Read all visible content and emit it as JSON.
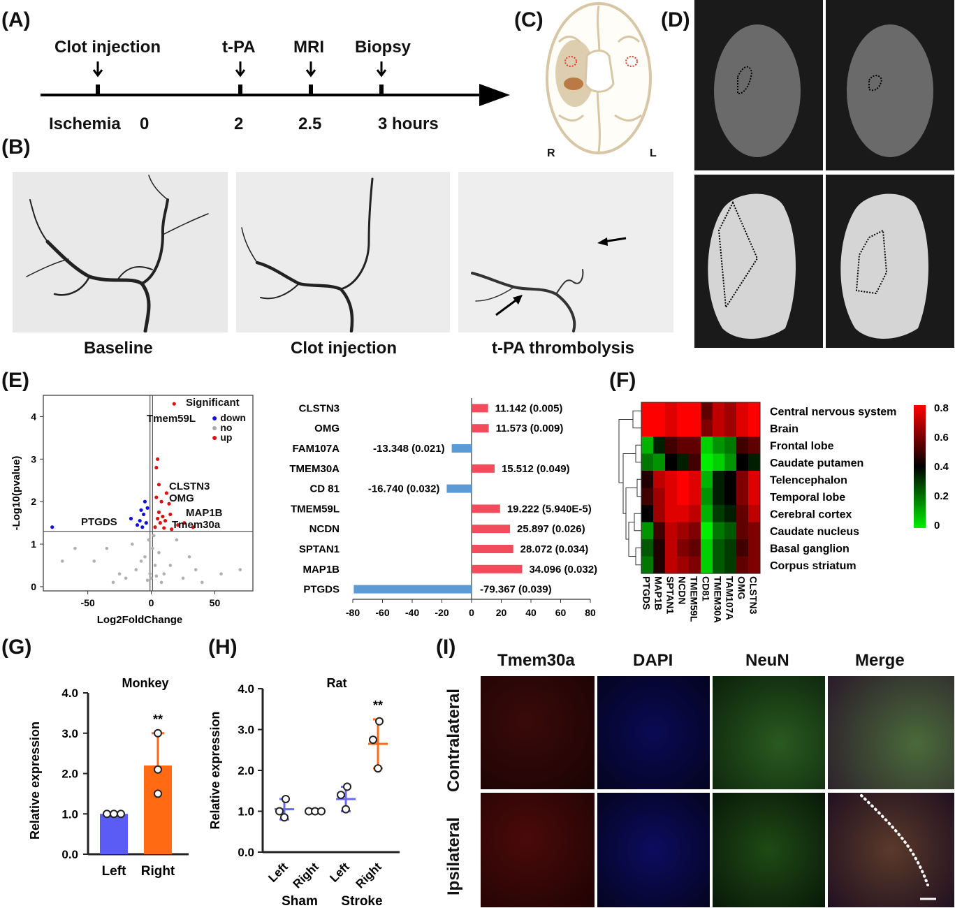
{
  "panels": {
    "A": {
      "label": "(A)",
      "events": [
        "Clot injection",
        "t-PA",
        "MRI",
        "Biopsy"
      ],
      "timeline": [
        "Ischemia",
        "0",
        "2",
        "2.5",
        "3 hours"
      ]
    },
    "B": {
      "label": "(B)",
      "captions": [
        "Baseline",
        "Clot injection",
        "t-PA thrombolysis"
      ]
    },
    "C": {
      "label": "(C)",
      "side_right": "R",
      "side_left": "L"
    },
    "D": {
      "label": "(D)"
    },
    "E": {
      "label": "(E)",
      "legend_title": "Significant",
      "legend": [
        "down",
        "no",
        "up"
      ],
      "gene_labels": [
        "Tmem59L",
        "CLSTN3",
        "OMG",
        "MAP1B",
        "Tmem30a",
        "PTGDS"
      ]
    },
    "F": {
      "label": "(F)",
      "rows": [
        "Central nervous system",
        "Brain",
        "Frontal lobe",
        "Caudate putamen",
        "Telencephalon",
        "Temporal lobe",
        "Cerebral cortex",
        "Caudate nucleus",
        "Basal ganglion",
        "Corpus striatum"
      ],
      "cols": [
        "PTGDS",
        "MAP1B",
        "SPTAN1",
        "NCDN",
        "TMEM59L",
        "CD81",
        "TMEM30A",
        "TAM107A",
        "OMG",
        "CLSTN3"
      ],
      "scale_ticks": [
        "0.8",
        "0.6",
        "0.4",
        "0.2",
        "0"
      ],
      "colors": {
        "high": "#ff0000",
        "mid": "#000000",
        "low": "#00ee00"
      }
    },
    "G": {
      "label": "(G)"
    },
    "H": {
      "label": "(H)"
    },
    "I": {
      "label": "(I)",
      "columns": [
        "Tmem30a",
        "DAPI",
        "NeuN",
        "Merge"
      ],
      "rows": [
        "Contralateral",
        "Ipsilateral"
      ]
    }
  },
  "chart_data": [
    {
      "id": "E-volcano",
      "type": "scatter",
      "xlabel": "Log2FoldChange",
      "ylabel": "-Log10(pvalue)",
      "xticks": [
        "-50",
        "0",
        "50"
      ],
      "yticks": [
        "0",
        "1",
        "2",
        "3",
        "4"
      ],
      "xlim": [
        -85,
        80
      ],
      "ylim": [
        -0.1,
        4.5
      ],
      "threshold_y": 1.3,
      "threshold_x": [
        -1,
        1
      ],
      "up_points": [
        [
          18,
          4.3
        ],
        [
          5,
          3
        ],
        [
          4,
          2.8
        ],
        [
          12,
          2.2
        ],
        [
          8,
          2.0
        ],
        [
          14,
          1.95
        ],
        [
          6,
          1.75
        ],
        [
          9,
          1.65
        ],
        [
          26,
          1.5
        ],
        [
          21,
          1.45
        ],
        [
          33,
          1.4
        ],
        [
          7,
          1.5
        ],
        [
          11,
          1.55
        ],
        [
          16,
          1.35
        ],
        [
          3,
          1.4
        ],
        [
          5,
          1.6
        ],
        [
          15,
          1.7
        ],
        [
          10,
          1.38
        ],
        [
          4,
          2.1
        ],
        [
          6,
          2.4
        ]
      ],
      "down_points": [
        [
          -78,
          1.4
        ],
        [
          -16,
          1.6
        ],
        [
          -5,
          2.0
        ],
        [
          -8,
          1.8
        ],
        [
          -4,
          1.5
        ],
        [
          -7,
          1.4
        ],
        [
          -11,
          1.45
        ],
        [
          -6,
          1.7
        ],
        [
          -3,
          1.85
        ],
        [
          -9,
          1.55
        ]
      ],
      "no_points": [
        [
          -2,
          1.1
        ],
        [
          1,
          0.9
        ],
        [
          -5,
          0.7
        ],
        [
          3,
          0.5
        ],
        [
          -1,
          0.3
        ],
        [
          2,
          1.2
        ],
        [
          -8,
          0.6
        ],
        [
          6,
          0.8
        ],
        [
          -12,
          0.4
        ],
        [
          10,
          0.3
        ],
        [
          -20,
          0.2
        ],
        [
          15,
          0.5
        ],
        [
          -30,
          0.1
        ],
        [
          25,
          0.2
        ],
        [
          -45,
          0.6
        ],
        [
          40,
          0.1
        ],
        [
          -60,
          0.9
        ],
        [
          -70,
          0.6
        ],
        [
          70,
          0.4
        ],
        [
          55,
          0.3
        ],
        [
          -35,
          0.9
        ],
        [
          30,
          0.7
        ],
        [
          -15,
          1.0
        ],
        [
          20,
          1.1
        ],
        [
          -25,
          0.3
        ],
        [
          35,
          0.4
        ],
        [
          0,
          0.2
        ],
        [
          -3,
          0.15
        ],
        [
          4,
          0.25
        ],
        [
          8,
          0.1
        ]
      ]
    },
    {
      "id": "E-bars",
      "type": "bar",
      "categories": [
        "CLSTN3",
        "OMG",
        "FAM107A",
        "TMEM30A",
        "CD 81",
        "TMEM59L",
        "NCDN",
        "SPTAN1",
        "MAP1B",
        "PTGDS"
      ],
      "values": [
        11.142,
        11.573,
        -13.348,
        15.512,
        -16.74,
        19.222,
        25.897,
        28.072,
        34.096,
        -79.367
      ],
      "value_labels": [
        "11.142 (0.005)",
        "11.573 (0.009)",
        "-13.348 (0.021)",
        "15.512 (0.049)",
        "-16.740 (0.032)",
        "19.222 (5.940E-5)",
        "25.897 (0.026)",
        "28.072 (0.034)",
        "34.096 (0.032)",
        "-79.367 (0.039)"
      ],
      "xticks": [
        "-80",
        "-60",
        "-40",
        "-20",
        "0",
        "20",
        "40",
        "60",
        "80"
      ],
      "xlim": [
        -80,
        80
      ],
      "colors": {
        "positive": "#f24c5c",
        "negative": "#5b9bd5"
      }
    },
    {
      "id": "F-heatmap",
      "type": "heatmap",
      "rows": [
        "Central nervous system",
        "Brain",
        "Frontal lobe",
        "Caudate putamen",
        "Telencephalon",
        "Temporal lobe",
        "Cerebral cortex",
        "Caudate nucleus",
        "Basal ganglion",
        "Corpus striatum"
      ],
      "cols": [
        "PTGDS",
        "MAP1B",
        "SPTAN1",
        "NCDN",
        "TMEM59L",
        "CD81",
        "TMEM30A",
        "TAM107A",
        "OMG",
        "CLSTN3"
      ],
      "values": [
        [
          0.8,
          0.8,
          0.75,
          0.85,
          0.9,
          0.55,
          0.7,
          0.65,
          0.75,
          0.85
        ],
        [
          0.8,
          0.8,
          0.75,
          0.85,
          0.9,
          0.6,
          0.7,
          0.65,
          0.75,
          0.85
        ],
        [
          0.1,
          0.35,
          0.5,
          0.55,
          0.55,
          0.05,
          0.15,
          0.2,
          0.5,
          0.55
        ],
        [
          0.2,
          0.15,
          0.4,
          0.35,
          0.5,
          0.0,
          0.05,
          0.15,
          0.4,
          0.35
        ],
        [
          0.45,
          0.7,
          0.75,
          0.8,
          0.75,
          0.1,
          0.35,
          0.4,
          0.6,
          0.75
        ],
        [
          0.5,
          0.65,
          0.75,
          0.8,
          0.75,
          0.15,
          0.35,
          0.4,
          0.6,
          0.75
        ],
        [
          0.4,
          0.65,
          0.75,
          0.75,
          0.7,
          0.1,
          0.3,
          0.35,
          0.55,
          0.7
        ],
        [
          0.15,
          0.5,
          0.7,
          0.65,
          0.6,
          0.0,
          0.2,
          0.25,
          0.55,
          0.6
        ],
        [
          0.25,
          0.45,
          0.7,
          0.6,
          0.55,
          0.05,
          0.25,
          0.3,
          0.5,
          0.6
        ],
        [
          0.2,
          0.45,
          0.7,
          0.65,
          0.6,
          0.05,
          0.25,
          0.3,
          0.55,
          0.6
        ]
      ],
      "scale": [
        0,
        0.8
      ]
    },
    {
      "id": "G-monkey",
      "type": "bar",
      "title": "Monkey",
      "ylabel": "Relative expression",
      "categories": [
        "Left",
        "Right"
      ],
      "values": [
        1.0,
        2.2
      ],
      "errors": [
        0.02,
        0.8
      ],
      "points": [
        [
          1.0,
          1.0,
          1.0
        ],
        [
          3.0,
          2.1,
          1.5
        ]
      ],
      "significance": "**",
      "yticks": [
        "0.0",
        "1.0",
        "2.0",
        "3.0",
        "4.0"
      ],
      "ylim": [
        0,
        4
      ],
      "colors": [
        "#5b5bf5",
        "#ff6a13"
      ]
    },
    {
      "id": "H-rat",
      "type": "scatter",
      "title": "Rat",
      "ylabel": "Relative expression",
      "categories": [
        "Left",
        "Right",
        "Left",
        "Right"
      ],
      "groups": [
        "Sham",
        "Stroke"
      ],
      "means": [
        1.05,
        1.0,
        1.3,
        2.65
      ],
      "errors": [
        0.25,
        0.02,
        0.3,
        0.6
      ],
      "points": [
        [
          1.3,
          1.0,
          0.85
        ],
        [
          1.0,
          1.0,
          1.0
        ],
        [
          1.6,
          1.4,
          1.05
        ],
        [
          3.2,
          2.75,
          2.05
        ]
      ],
      "significance": "**",
      "yticks": [
        "0.0",
        "1.0",
        "2.0",
        "3.0",
        "4.0"
      ],
      "ylim": [
        0,
        4
      ],
      "colors": [
        "#6a6af5",
        "#6a6af5",
        "#6a6af5",
        "#ff6a13"
      ]
    }
  ]
}
